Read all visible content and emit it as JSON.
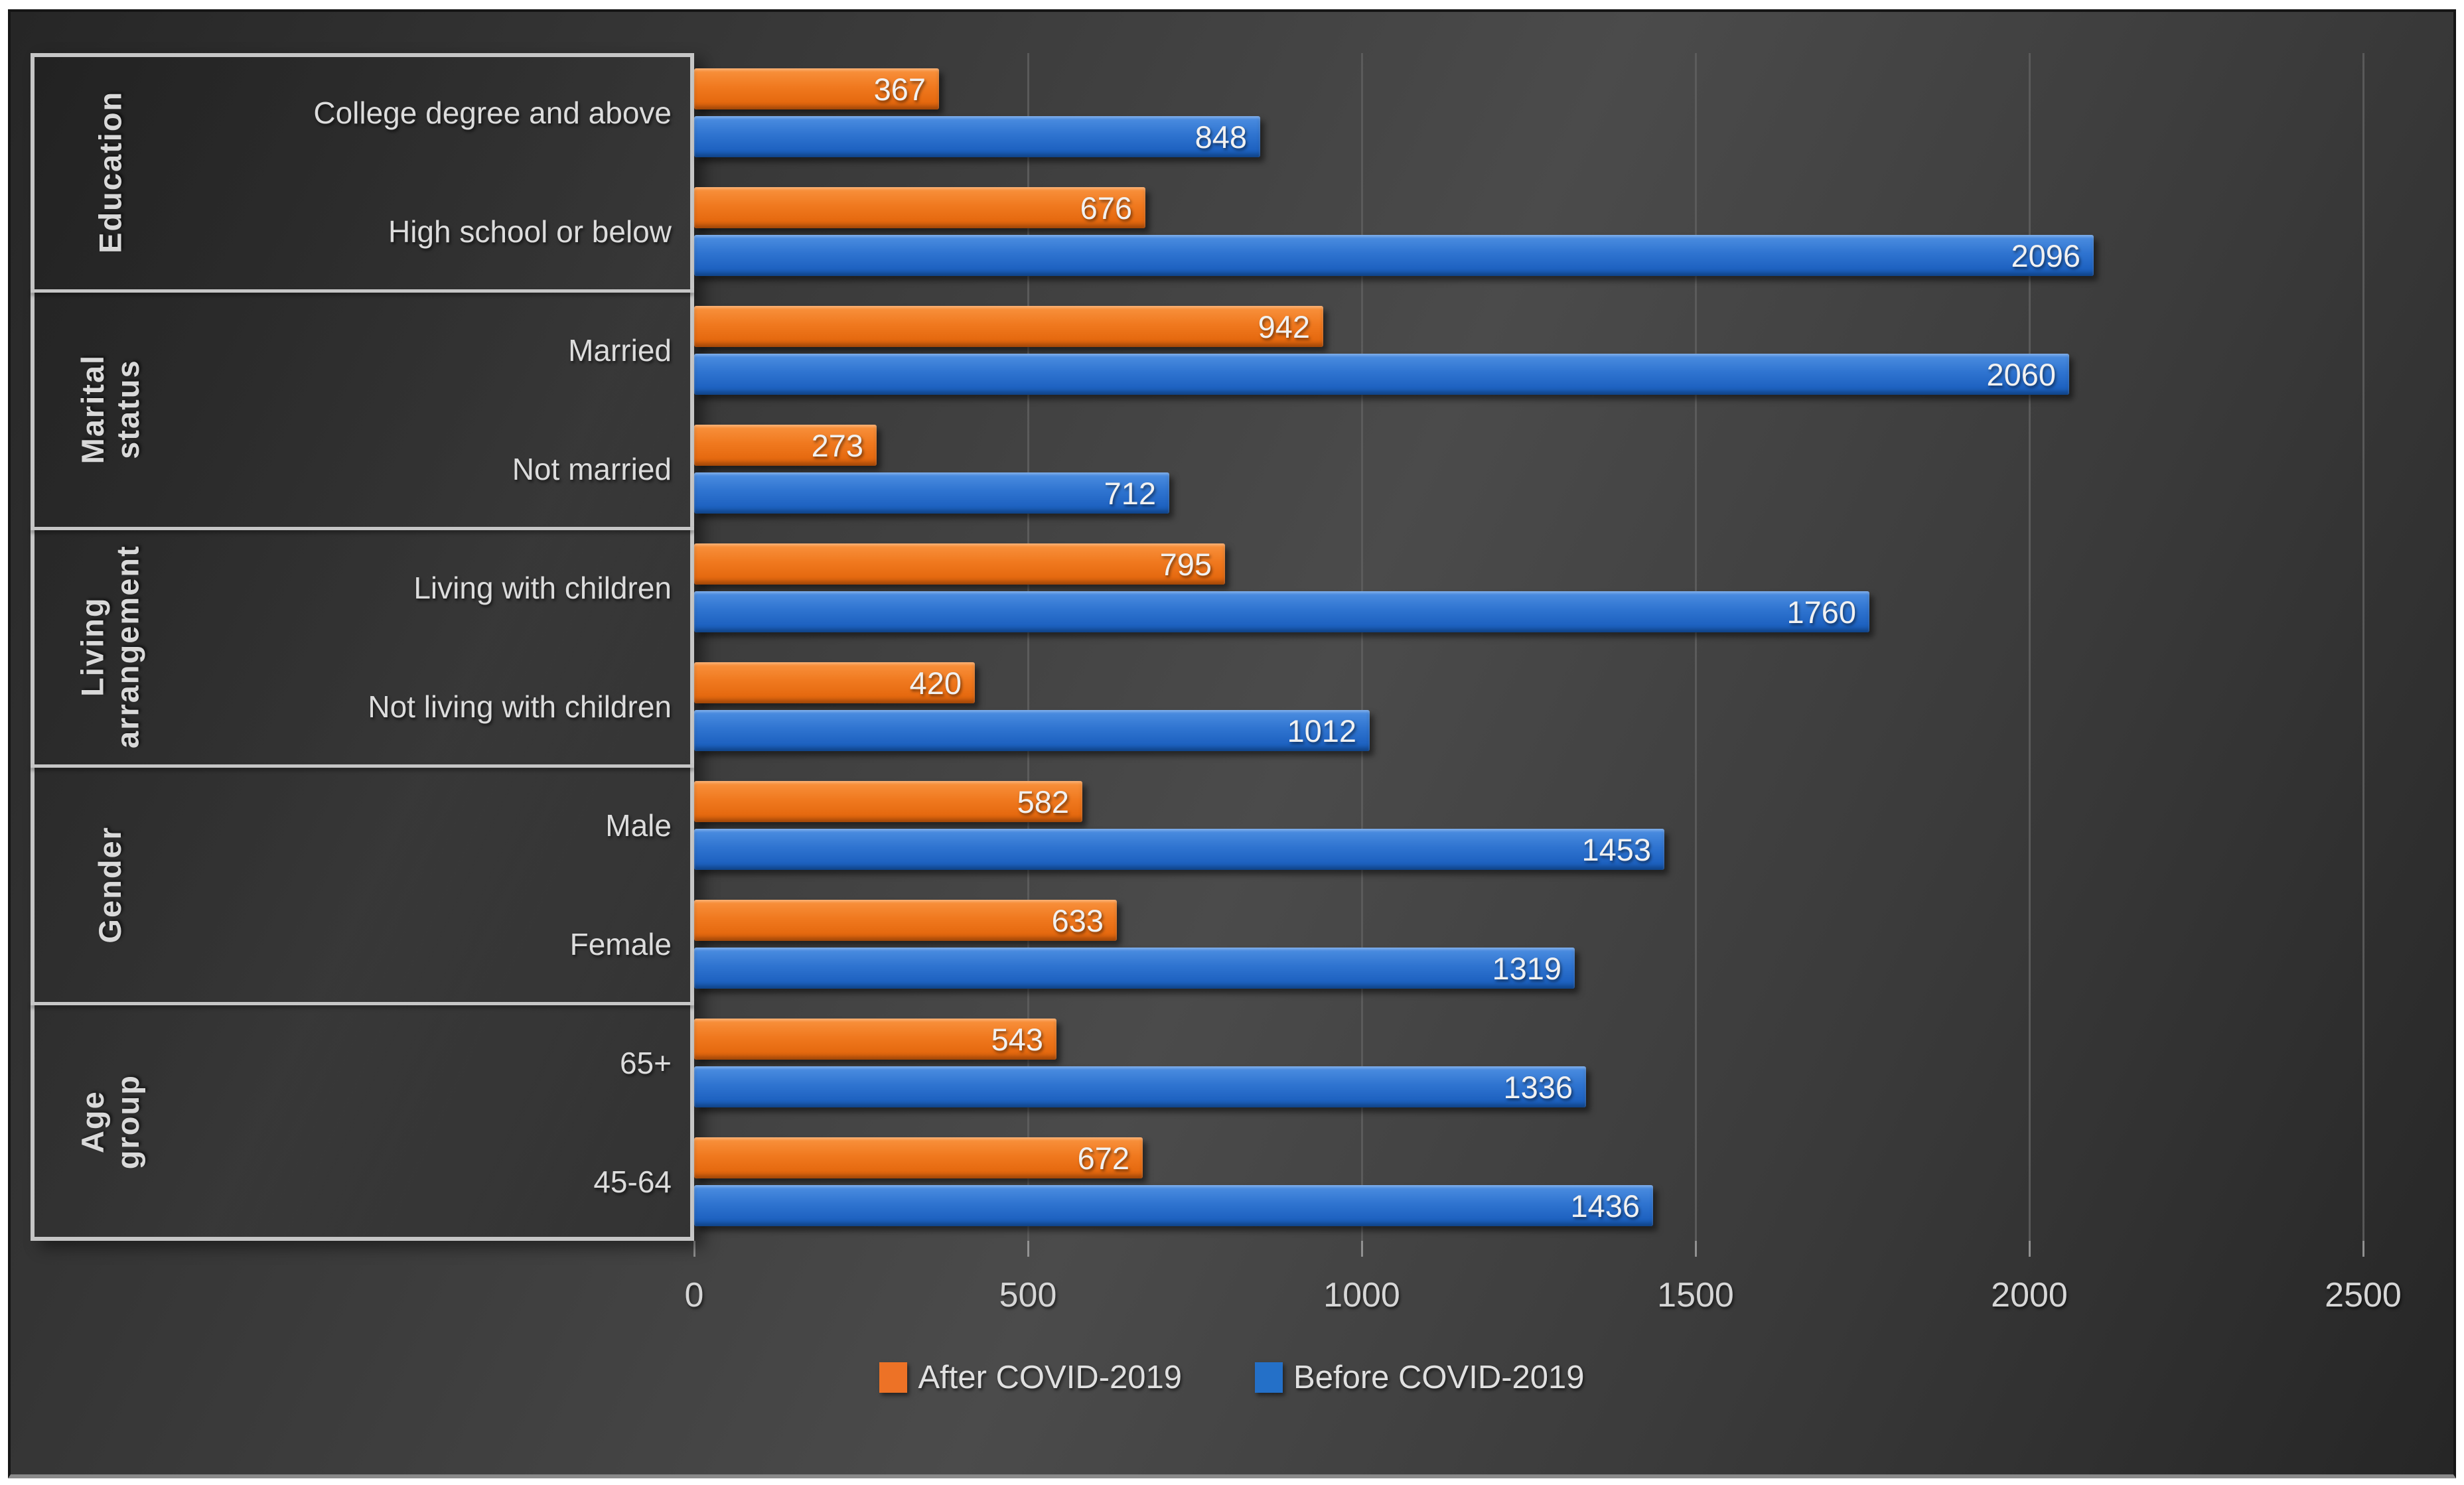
{
  "chart_data": {
    "type": "bar",
    "orientation": "horizontal",
    "title": "",
    "xlabel": "",
    "ylabel": "",
    "grid": true,
    "legend_position": "bottom",
    "series": [
      {
        "name": "After COVID-2019",
        "key": "after",
        "color": "#ED7226"
      },
      {
        "name": "Before COVID-2019",
        "key": "before",
        "color": "#2470C8"
      }
    ],
    "groups": [
      {
        "label": "Education",
        "label_lines": [
          "Education"
        ],
        "items": [
          {
            "label": "College degree and above",
            "after": 367,
            "before": 848
          },
          {
            "label": "High school or below",
            "after": 676,
            "before": 2096
          }
        ]
      },
      {
        "label": "Marital status",
        "label_lines": [
          "Marital",
          "status"
        ],
        "items": [
          {
            "label": "Married",
            "after": 942,
            "before": 2060
          },
          {
            "label": "Not married",
            "after": 273,
            "before": 712
          }
        ]
      },
      {
        "label": "Living arrangement",
        "label_lines": [
          "Living",
          "arrangement"
        ],
        "items": [
          {
            "label": "Living with children",
            "after": 795,
            "before": 1760
          },
          {
            "label": "Not living with children",
            "after": 420,
            "before": 1012
          }
        ]
      },
      {
        "label": "Gender",
        "label_lines": [
          "Gender"
        ],
        "items": [
          {
            "label": "Male",
            "after": 582,
            "before": 1453
          },
          {
            "label": "Female",
            "after": 633,
            "before": 1319
          }
        ]
      },
      {
        "label": "Age group",
        "label_lines": [
          "Age group"
        ],
        "items": [
          {
            "label": "65+",
            "after": 543,
            "before": 1336
          },
          {
            "label": "45-64",
            "after": 672,
            "before": 1436
          }
        ]
      }
    ],
    "x_axis": {
      "ticks": [
        0,
        500,
        1000,
        1500,
        2000,
        2500
      ],
      "max": 2500
    },
    "legend": [
      "After COVID-2019",
      "Before COVID-2019"
    ]
  },
  "colors": {
    "background": "#3b3b3b",
    "after_bar": "#ED7226",
    "before_bar": "#2470C8",
    "gridline": "#5f5f5f",
    "panel_border": "#c6c6c6",
    "text": "#d9d9d9"
  }
}
